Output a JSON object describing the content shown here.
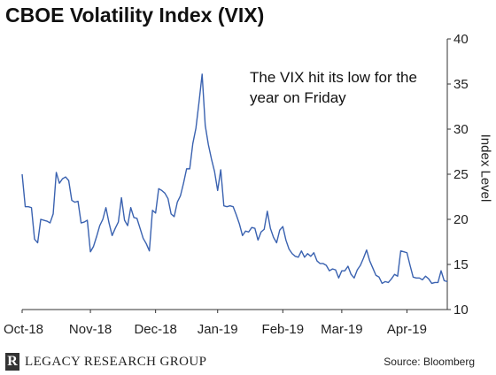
{
  "chart_data": {
    "type": "line",
    "title": "CBOE Volatility Index (VIX)",
    "ylabel": "Index Level",
    "xlabel": "",
    "ylim": [
      10,
      40
    ],
    "yticks": [
      10,
      15,
      20,
      25,
      30,
      35,
      40
    ],
    "grid": false,
    "legend": "none",
    "line_color": "#3a62b0",
    "annotation": "The VIX hit its low for the year on Friday",
    "x_ticks": [
      {
        "label": "Oct-18",
        "index": 0
      },
      {
        "label": "Nov-18",
        "index": 22
      },
      {
        "label": "Dec-18",
        "index": 43
      },
      {
        "label": "Jan-19",
        "index": 63
      },
      {
        "label": "Feb-19",
        "index": 84
      },
      {
        "label": "Mar-19",
        "index": 103
      },
      {
        "label": "Apr-19",
        "index": 124
      }
    ],
    "series": [
      {
        "values": [
          25.0,
          21.4,
          21.4,
          21.3,
          17.8,
          17.4,
          20.0,
          19.9,
          19.8,
          19.6,
          20.6,
          25.2,
          24.0,
          24.5,
          24.7,
          24.3,
          22.1,
          21.9,
          22.0,
          19.6,
          19.7,
          19.9,
          16.4,
          17.0,
          18.1,
          19.3,
          20.0,
          21.3,
          19.6,
          18.2,
          19.0,
          19.7,
          22.4,
          19.9,
          19.3,
          21.3,
          20.2,
          20.1,
          19.0,
          17.9,
          17.3,
          16.5,
          21.0,
          20.7,
          23.4,
          23.2,
          22.9,
          22.3,
          20.6,
          20.3,
          21.9,
          22.6,
          24.0,
          25.6,
          25.6,
          28.4,
          30.1,
          33.0,
          36.1,
          30.4,
          28.3,
          26.7,
          25.3,
          23.2,
          25.5,
          21.5,
          21.4,
          21.5,
          21.4,
          20.5,
          19.5,
          18.2,
          18.7,
          18.6,
          19.1,
          19.0,
          17.7,
          18.6,
          18.9,
          20.9,
          19.0,
          18.0,
          17.4,
          18.8,
          19.2,
          17.7,
          16.7,
          16.2,
          15.9,
          15.8,
          16.5,
          15.8,
          16.2,
          15.9,
          16.3,
          15.4,
          15.1,
          15.1,
          14.9,
          14.3,
          14.5,
          14.4,
          13.5,
          14.3,
          14.3,
          14.8,
          13.9,
          13.5,
          14.4,
          14.9,
          15.7,
          16.6,
          15.4,
          14.6,
          13.8,
          13.6,
          12.9,
          13.1,
          13.0,
          13.4,
          13.9,
          13.7,
          16.5,
          16.4,
          16.3,
          14.9,
          13.6,
          13.5,
          13.5,
          13.3,
          13.7,
          13.4,
          12.9,
          13.0,
          13.0,
          14.3,
          13.2,
          13.1
        ]
      }
    ]
  },
  "footer": {
    "logo_mark": "R",
    "logo_text": "LEGACY RESEARCH GROUP",
    "source": "Source: Bloomberg"
  }
}
